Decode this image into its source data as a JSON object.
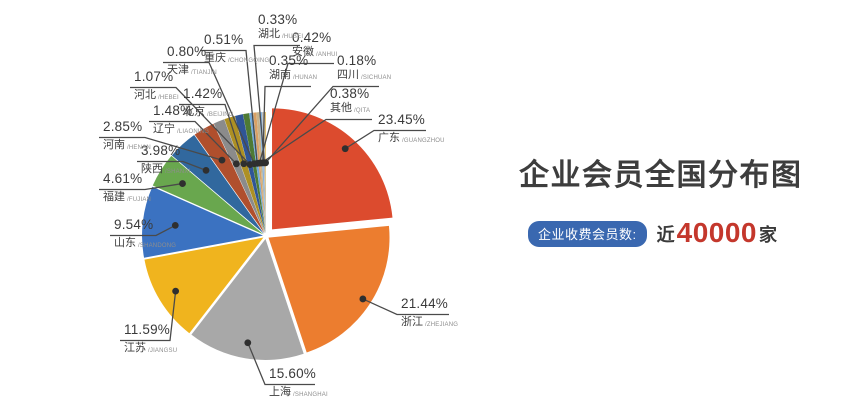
{
  "info": {
    "title": "企业会员全国分布图",
    "badge_label": "企业收费会员数:",
    "stat_prefix": "近",
    "stat_value": "40000",
    "stat_suffix": "家",
    "badge_color": "#3a68b0",
    "stat_color": "#c4372c",
    "title_color": "#3d3d3d"
  },
  "chart_data": {
    "type": "pie",
    "title": "企业会员全国分布图",
    "unit": "%",
    "start_angle": "top",
    "direction": "clockwise",
    "legend_position": "none",
    "label_style": "percent + chinese name + pinyin, external callout lines with dots",
    "series": [
      {
        "name": "广东",
        "en": "GUANGZHOU",
        "value": 23.45,
        "label": "23.45%",
        "color": "#dc4b2e"
      },
      {
        "name": "浙江",
        "en": "ZHEJIANG",
        "value": 21.44,
        "label": "21.44%",
        "color": "#ec7d2f"
      },
      {
        "name": "上海",
        "en": "SHANGHAI",
        "value": 15.6,
        "label": "15.60%",
        "color": "#a8a8a8"
      },
      {
        "name": "江苏",
        "en": "JIANGSU",
        "value": 11.59,
        "label": "11.59%",
        "color": "#f0b41e"
      },
      {
        "name": "山东",
        "en": "SHANDONG",
        "value": 9.54,
        "label": "9.54%",
        "color": "#3b72c1"
      },
      {
        "name": "福建",
        "en": "FUJIAN",
        "value": 4.61,
        "label": "4.61%",
        "color": "#69a74e"
      },
      {
        "name": "陕西",
        "en": "SHANXI",
        "value": 3.98,
        "label": "3.98%",
        "color": "#31689e"
      },
      {
        "name": "河南",
        "en": "HENAN",
        "value": 2.85,
        "label": "2.85%",
        "color": "#b04f2d"
      },
      {
        "name": "辽宁",
        "en": "LIAONING",
        "value": 1.48,
        "label": "1.48%",
        "color": "#8b8b8b"
      },
      {
        "name": "北京",
        "en": "BEIJING",
        "value": 1.42,
        "label": "1.42%",
        "color": "#ad9024"
      },
      {
        "name": "河北",
        "en": "HEBEI",
        "value": 1.07,
        "label": "1.07%",
        "color": "#2f5597"
      },
      {
        "name": "天津",
        "en": "TIANJIN",
        "value": 0.8,
        "label": "0.80%",
        "color": "#4e7a35"
      },
      {
        "name": "重庆",
        "en": "CHONGQING",
        "value": 0.51,
        "label": "0.51%",
        "color": "#6fa8dc"
      },
      {
        "name": "安徽",
        "en": "ANHUI",
        "value": 0.42,
        "label": "0.42%",
        "color": "#d9a064"
      },
      {
        "name": "其他",
        "en": "QITA",
        "value": 0.38,
        "label": "0.38%",
        "color": "#c9b38a"
      },
      {
        "name": "湖南",
        "en": "HUNAN",
        "value": 0.35,
        "label": "0.35%",
        "color": "#88b4dd"
      },
      {
        "name": "湖北",
        "en": "HUBEI",
        "value": 0.33,
        "label": "0.33%",
        "color": "#bcbcbc"
      },
      {
        "name": "四川",
        "en": "SICHUAN",
        "value": 0.18,
        "label": "0.18%",
        "color": "#e3c16a"
      }
    ]
  }
}
